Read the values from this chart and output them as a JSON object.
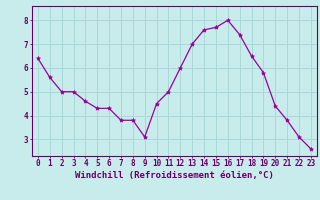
{
  "x": [
    0,
    1,
    2,
    3,
    4,
    5,
    6,
    7,
    8,
    9,
    10,
    11,
    12,
    13,
    14,
    15,
    16,
    17,
    18,
    19,
    20,
    21,
    22,
    23
  ],
  "y": [
    6.4,
    5.6,
    5.0,
    5.0,
    4.6,
    4.3,
    4.3,
    3.8,
    3.8,
    3.1,
    4.5,
    5.0,
    6.0,
    7.0,
    7.6,
    7.7,
    8.0,
    7.4,
    6.5,
    5.8,
    4.4,
    3.8,
    3.1,
    2.6
  ],
  "line_color": "#990099",
  "marker": "*",
  "marker_size": 3,
  "bg_color": "#c8ecec",
  "grid_color": "#a8d8d8",
  "axis_color": "#660066",
  "xlabel": "Windchill (Refroidissement éolien,°C)",
  "xlabel_fontsize": 6.5,
  "tick_fontsize": 5.5,
  "ylim": [
    2.3,
    8.6
  ],
  "yticks": [
    3,
    4,
    5,
    6,
    7,
    8
  ],
  "xlim": [
    -0.5,
    23.5
  ]
}
